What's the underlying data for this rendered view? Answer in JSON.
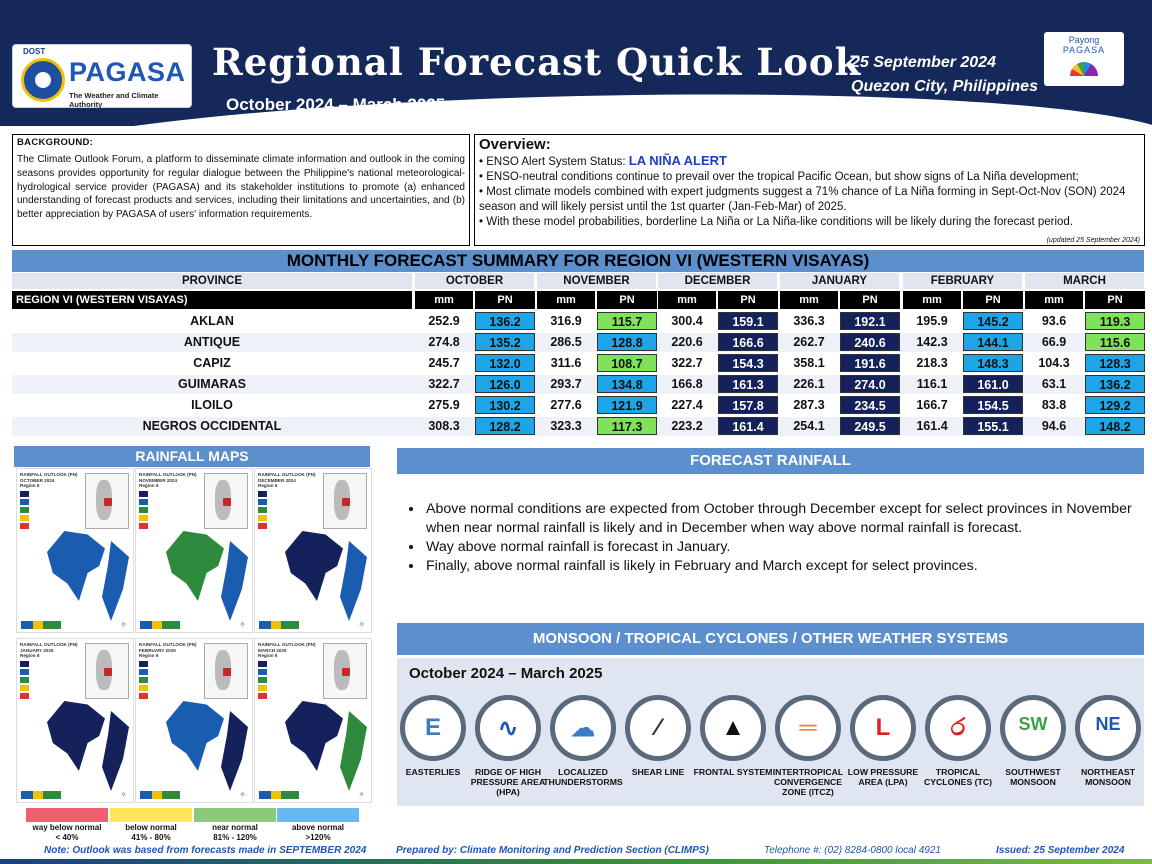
{
  "header": {
    "agency_small": "DOST",
    "agency": "PAGASA",
    "agency_tagline": "The Weather and Climate Authority",
    "title": "Regional Forecast Quick Look",
    "period": "October 2024 – March 2025",
    "date": "25 September 2024",
    "place": "Quezon City, Philippines",
    "payong_1": "Payong",
    "payong_2": "PAGASA"
  },
  "background": {
    "heading": "BACKGROUND:",
    "text": "The Climate Outlook Forum, a platform to disseminate climate information and outlook in the coming seasons provides opportunity for regular dialogue between the Philippine's national meteorological-hydrological service provider (PAGASA) and its stakeholder institutions to promote (a) enhanced understanding of forecast products and services, including their limitations and uncertainties, and (b) better appreciation by PAGASA of users' information requirements."
  },
  "overview": {
    "heading": "Overview:",
    "status_prefix": "• ENSO Alert System Status: ",
    "status_value": "LA NIÑA ALERT",
    "bullets": [
      "• ENSO-neutral conditions continue to prevail over the tropical Pacific Ocean, but show signs of La Niña development;",
      "• Most climate models combined with expert judgments suggest a 71% chance of La Niña forming in Sept-Oct-Nov (SON) 2024 season and will likely persist until the 1st quarter (Jan-Feb-Mar) of 2025.",
      "• With these model probabilities, borderline La Niña or La Niña-like conditions will be likely during the forecast period."
    ],
    "updated": "(updated 25 September 2024)"
  },
  "table": {
    "title": "MONTHLY FORECAST SUMMARY FOR REGION VI (WESTERN VISAYAS)",
    "province_header": "PROVINCE",
    "region_label": "REGION VI (WESTERN VISAYAS)",
    "months": [
      "OCTOBER",
      "NOVEMBER",
      "DECEMBER",
      "JANUARY",
      "FEBRUARY",
      "MARCH"
    ],
    "sub_mm": "mm",
    "sub_pn": "PN",
    "rows": [
      {
        "province": "AKLAN",
        "values": [
          [
            "252.9",
            "136.2"
          ],
          [
            "316.9",
            "115.7"
          ],
          [
            "300.4",
            "159.1"
          ],
          [
            "336.3",
            "192.1"
          ],
          [
            "195.9",
            "145.2"
          ],
          [
            "93.6",
            "119.3"
          ]
        ]
      },
      {
        "province": "ANTIQUE",
        "values": [
          [
            "274.8",
            "135.2"
          ],
          [
            "286.5",
            "128.8"
          ],
          [
            "220.6",
            "166.6"
          ],
          [
            "262.7",
            "240.6"
          ],
          [
            "142.3",
            "144.1"
          ],
          [
            "66.9",
            "115.6"
          ]
        ]
      },
      {
        "province": "CAPIZ",
        "values": [
          [
            "245.7",
            "132.0"
          ],
          [
            "311.6",
            "108.7"
          ],
          [
            "322.7",
            "154.3"
          ],
          [
            "358.1",
            "191.6"
          ],
          [
            "218.3",
            "148.3"
          ],
          [
            "104.3",
            "128.3"
          ]
        ]
      },
      {
        "province": "GUIMARAS",
        "values": [
          [
            "322.7",
            "126.0"
          ],
          [
            "293.7",
            "134.8"
          ],
          [
            "166.8",
            "161.3"
          ],
          [
            "226.1",
            "274.0"
          ],
          [
            "116.1",
            "161.0"
          ],
          [
            "63.1",
            "136.2"
          ]
        ]
      },
      {
        "province": "ILOILO",
        "values": [
          [
            "275.9",
            "130.2"
          ],
          [
            "277.6",
            "121.9"
          ],
          [
            "227.4",
            "157.8"
          ],
          [
            "287.3",
            "234.5"
          ],
          [
            "166.7",
            "154.5"
          ],
          [
            "83.8",
            "129.2"
          ]
        ]
      },
      {
        "province": "NEGROS OCCIDENTAL",
        "values": [
          [
            "308.3",
            "128.2"
          ],
          [
            "323.3",
            "117.3"
          ],
          [
            "223.2",
            "161.4"
          ],
          [
            "254.1",
            "249.5"
          ],
          [
            "161.4",
            "155.1"
          ],
          [
            "94.6",
            "148.2"
          ]
        ]
      }
    ],
    "pn_colors": {
      "above": "#1ea5e8",
      "near": "#7ee35a",
      "way_above": "#14215a"
    }
  },
  "maps": {
    "heading": "RAINFALL MAPS",
    "items": [
      {
        "title": "RAINFALL OUTLOOK (PN)",
        "month": "OCTOBER 2024",
        "region": "Region 6",
        "fill": "#1a5cb0",
        "fill2": "#1a5cb0"
      },
      {
        "title": "RAINFALL OUTLOOK (PN)",
        "month": "NOVEMBER 2024",
        "region": "Region 6",
        "fill": "#2e8b3d",
        "fill2": "#1a5cb0"
      },
      {
        "title": "RAINFALL OUTLOOK (PN)",
        "month": "DECEMBER 2024",
        "region": "Region 6",
        "fill": "#14215a",
        "fill2": "#1a5cb0"
      },
      {
        "title": "RAINFALL OUTLOOK (PN)",
        "month": "JANUARY 2025",
        "region": "Region 6",
        "fill": "#14215a",
        "fill2": "#14215a"
      },
      {
        "title": "RAINFALL OUTLOOK (PN)",
        "month": "FEBRUARY 2025",
        "region": "Region 6",
        "fill": "#1a5cb0",
        "fill2": "#14215a"
      },
      {
        "title": "RAINFALL OUTLOOK (PN)",
        "month": "MARCH 2025",
        "region": "Region 6",
        "fill": "#14215a",
        "fill2": "#2e8b3d"
      }
    ],
    "legend": [
      {
        "label": "way below normal",
        "range": "< 40%",
        "color": "#f06070"
      },
      {
        "label": "below normal",
        "range": "41% - 80%",
        "color": "#ffe55a"
      },
      {
        "label": "near normal",
        "range": "81% - 120%",
        "color": "#8cc97a"
      },
      {
        "label": "above normal",
        "range": ">120%",
        "color": "#69b8f0"
      }
    ]
  },
  "forecast_rainfall": {
    "heading": "FORECAST RAINFALL",
    "bullets": [
      "Above normal conditions are expected from October through December except for select provinces in November when near normal rainfall is likely and in December when way above normal rainfall is forecast.",
      "Way above normal rainfall is forecast in January.",
      "Finally, above normal rainfall is likely in February and March except for select provinces."
    ]
  },
  "systems": {
    "heading": "MONSOON / TROPICAL CYCLONES / OTHER WEATHER SYSTEMS",
    "period": "October 2024 – March 2025",
    "items": [
      {
        "label": "EASTERLIES",
        "icon": "easterlies-icon",
        "glyph": "E"
      },
      {
        "label": "RIDGE OF HIGH PRESSURE AREA (HPA)",
        "icon": "ridge-icon",
        "glyph": "∿"
      },
      {
        "label": "LOCALIZED THUNDERSTORMS",
        "icon": "thunderstorm-icon",
        "glyph": "☁"
      },
      {
        "label": "SHEAR LINE",
        "icon": "shear-line-icon",
        "glyph": "⁄"
      },
      {
        "label": "FRONTAL SYSTEM",
        "icon": "frontal-system-icon",
        "glyph": "▲"
      },
      {
        "label": "INTERTROPICAL CONVERGENCE ZONE (ITCZ)",
        "icon": "itcz-icon",
        "glyph": "═"
      },
      {
        "label": "LOW PRESSURE AREA (LPA)",
        "icon": "lpa-icon",
        "glyph": "L"
      },
      {
        "label": "TROPICAL CYCLONES (TC)",
        "icon": "tropical-cyclone-icon",
        "glyph": "ර"
      },
      {
        "label": "SOUTHWEST MONSOON",
        "icon": "southwest-monsoon-icon",
        "glyph": "SW"
      },
      {
        "label": "NORTHEAST MONSOON",
        "icon": "northeast-monsoon-icon",
        "glyph": "NE"
      }
    ]
  },
  "footer": {
    "note_prefix": "Note:",
    "note": " Outlook was based from forecasts made in SEPTEMBER 2024",
    "prepared": "Prepared by: Climate Monitoring and Prediction Section (CLIMPS)",
    "telephone": "Telephone #: (02) 8284-0800 local 4921",
    "issued": "Issued: 25 September 2024"
  }
}
